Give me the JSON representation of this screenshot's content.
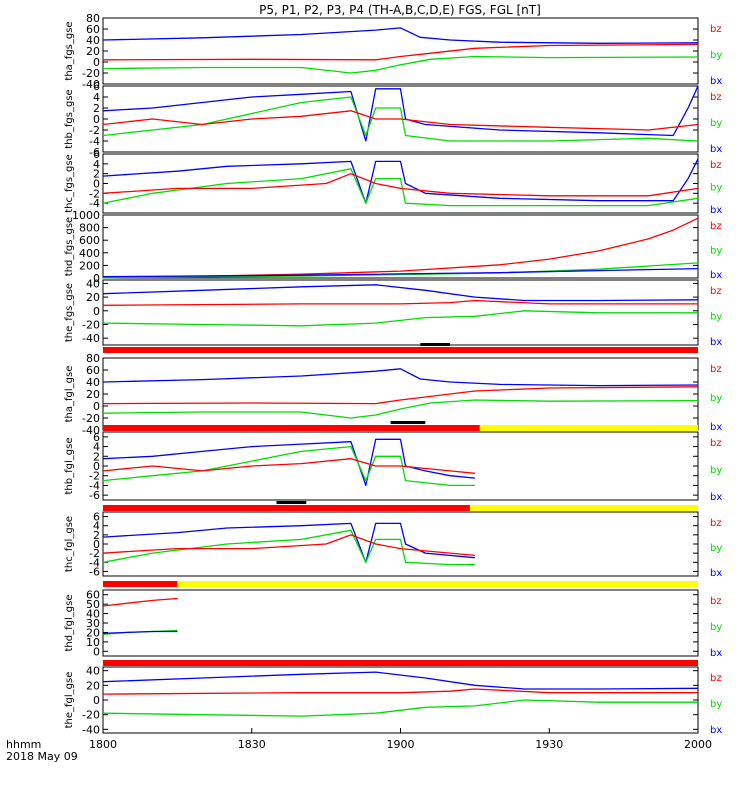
{
  "title": "P5, P1, P2, P3, P4 (TH-A,B,C,D,E) FGS, FGL [nT]",
  "x_axis": {
    "ticks": [
      "1800",
      "1830",
      "1900",
      "1930",
      "2000"
    ],
    "footer_line1": "hhmm",
    "footer_line2": "2018 May 09"
  },
  "colors": {
    "bx": "#0000ff",
    "by": "#00dd00",
    "bz": "#ff0000",
    "axis": "#000000"
  },
  "chart_data": [
    {
      "type": "line",
      "ylabel": "tha_fgs_gse",
      "ylim": [
        -40,
        80
      ],
      "ytick_values": [
        -40,
        -20,
        0,
        20,
        40,
        60,
        80
      ],
      "legend": [
        "bz",
        "by",
        "bx"
      ],
      "x": [
        0,
        120
      ],
      "x_units": "minutes after 1800",
      "series": [
        {
          "name": "bx",
          "x": [
            0,
            20,
            40,
            55,
            60,
            64,
            70,
            80,
            100,
            120
          ],
          "values": [
            40,
            44,
            50,
            58,
            62,
            45,
            40,
            36,
            34,
            35
          ]
        },
        {
          "name": "by",
          "x": [
            0,
            20,
            40,
            50,
            55,
            60,
            66,
            75,
            90,
            120
          ],
          "values": [
            -12,
            -10,
            -10,
            -20,
            -15,
            -5,
            5,
            10,
            8,
            9
          ]
        },
        {
          "name": "bz",
          "x": [
            0,
            30,
            55,
            60,
            65,
            75,
            90,
            120
          ],
          "values": [
            4,
            5,
            4,
            10,
            15,
            25,
            30,
            32
          ]
        }
      ]
    },
    {
      "type": "line",
      "ylabel": "thb_fgs_gse",
      "ylim": [
        -6,
        6
      ],
      "ytick_values": [
        -6,
        -4,
        -2,
        0,
        2,
        4,
        6
      ],
      "legend": [
        "bz",
        "by",
        "bx"
      ],
      "x": [
        0,
        120
      ],
      "series": [
        {
          "name": "bx",
          "x": [
            0,
            10,
            20,
            30,
            40,
            50,
            53,
            55,
            60,
            61,
            65,
            80,
            100,
            115,
            118,
            120
          ],
          "values": [
            1.5,
            2,
            3,
            4,
            4.5,
            5,
            -4,
            5.5,
            5.5,
            0,
            -1,
            -2,
            -2.5,
            -3,
            2,
            6
          ]
        },
        {
          "name": "by",
          "x": [
            0,
            10,
            20,
            30,
            40,
            50,
            53,
            55,
            60,
            61,
            70,
            90,
            110,
            120
          ],
          "values": [
            -3,
            -2,
            -1,
            1,
            3,
            4,
            -3,
            2,
            2,
            -3,
            -4,
            -4,
            -3.5,
            -4
          ]
        },
        {
          "name": "bz",
          "x": [
            0,
            10,
            20,
            30,
            40,
            50,
            55,
            60,
            70,
            90,
            110,
            120
          ],
          "values": [
            -1,
            0,
            -1,
            0,
            0.5,
            1.5,
            0,
            0,
            -1,
            -1.5,
            -2,
            -1
          ]
        }
      ]
    },
    {
      "type": "line",
      "ylabel": "thc_fgs_gse",
      "ylim": [
        -6,
        6
      ],
      "ytick_values": [
        -4,
        -2,
        0,
        2,
        4,
        6
      ],
      "legend": [
        "bz",
        "by",
        "bx"
      ],
      "x": [
        0,
        120
      ],
      "series": [
        {
          "name": "bx",
          "x": [
            0,
            15,
            25,
            40,
            50,
            53,
            55,
            60,
            61,
            65,
            80,
            100,
            115,
            118,
            120
          ],
          "values": [
            1.5,
            2.5,
            3.5,
            4,
            4.5,
            -4,
            4.5,
            4.5,
            0,
            -2,
            -3,
            -3.5,
            -3.5,
            1,
            5
          ]
        },
        {
          "name": "by",
          "x": [
            0,
            10,
            25,
            40,
            50,
            53,
            55,
            60,
            61,
            70,
            90,
            110,
            120
          ],
          "values": [
            -4,
            -2,
            0,
            1,
            3,
            -4,
            1,
            1,
            -4,
            -4.5,
            -4.5,
            -4.5,
            -3
          ]
        },
        {
          "name": "bz",
          "x": [
            0,
            15,
            30,
            45,
            50,
            55,
            60,
            70,
            90,
            110,
            120
          ],
          "values": [
            -2,
            -1,
            -1,
            0,
            2,
            0,
            -1,
            -2,
            -2.5,
            -2.5,
            -1
          ]
        }
      ]
    },
    {
      "type": "line",
      "ylabel": "thd_fgs_gse",
      "ylim": [
        0,
        1000
      ],
      "ytick_values": [
        0,
        200,
        400,
        600,
        800,
        1000
      ],
      "legend": [
        "bz",
        "by",
        "bx"
      ],
      "x": [
        0,
        120
      ],
      "series": [
        {
          "name": "bz",
          "x": [
            0,
            20,
            40,
            60,
            80,
            90,
            100,
            110,
            115,
            120
          ],
          "values": [
            10,
            30,
            60,
            110,
            210,
            300,
            430,
            620,
            760,
            950
          ]
        },
        {
          "name": "by",
          "x": [
            0,
            40,
            80,
            100,
            120
          ],
          "values": [
            5,
            30,
            80,
            140,
            240
          ]
        },
        {
          "name": "bx",
          "x": [
            0,
            40,
            80,
            120
          ],
          "values": [
            20,
            45,
            85,
            150
          ]
        }
      ]
    },
    {
      "type": "line",
      "ylabel": "the_fgs_gse",
      "ylim": [
        -50,
        45
      ],
      "ytick_values": [
        -40,
        -20,
        0,
        20,
        40
      ],
      "legend": [
        "bz",
        "by",
        "bx"
      ],
      "x": [
        0,
        120
      ],
      "series": [
        {
          "name": "bx",
          "x": [
            0,
            20,
            40,
            55,
            65,
            75,
            85,
            100,
            120
          ],
          "values": [
            25,
            30,
            35,
            38,
            30,
            20,
            15,
            15,
            16
          ]
        },
        {
          "name": "by",
          "x": [
            0,
            20,
            40,
            55,
            65,
            75,
            85,
            100,
            120
          ],
          "values": [
            -18,
            -20,
            -22,
            -18,
            -10,
            -8,
            0,
            -3,
            -3
          ]
        },
        {
          "name": "bz",
          "x": [
            0,
            40,
            60,
            70,
            75,
            90,
            120
          ],
          "values": [
            8,
            10,
            10,
            12,
            15,
            10,
            10
          ]
        }
      ]
    },
    {
      "type": "line",
      "ylabel": "tha_fgl_gse",
      "ylim": [
        -40,
        80
      ],
      "ytick_values": [
        -40,
        -20,
        0,
        20,
        40,
        60,
        80
      ],
      "legend": [
        "bz",
        "by",
        "bx"
      ],
      "x": [
        0,
        120
      ],
      "series": [
        {
          "name": "bx",
          "x": [
            0,
            20,
            40,
            55,
            60,
            64,
            70,
            80,
            100,
            120
          ],
          "values": [
            40,
            44,
            50,
            58,
            62,
            45,
            40,
            36,
            34,
            35
          ]
        },
        {
          "name": "by",
          "x": [
            0,
            20,
            40,
            50,
            55,
            60,
            66,
            75,
            90,
            120
          ],
          "values": [
            -12,
            -10,
            -10,
            -20,
            -15,
            -5,
            5,
            10,
            8,
            9
          ]
        },
        {
          "name": "bz",
          "x": [
            0,
            30,
            55,
            60,
            65,
            75,
            90,
            120
          ],
          "values": [
            4,
            5,
            4,
            10,
            15,
            25,
            30,
            32
          ]
        }
      ]
    },
    {
      "type": "line",
      "ylabel": "thb_fgl_gse",
      "ylim": [
        -7,
        7
      ],
      "ytick_values": [
        -6,
        -4,
        -2,
        0,
        2,
        4,
        6
      ],
      "legend": [
        "bz",
        "by",
        "bx"
      ],
      "x": [
        0,
        120
      ],
      "series": [
        {
          "name": "bx",
          "x": [
            0,
            10,
            20,
            30,
            40,
            50,
            53,
            55,
            60,
            61,
            65,
            70,
            75
          ],
          "values": [
            1.5,
            2,
            3,
            4,
            4.5,
            5,
            -4,
            5.5,
            5.5,
            0,
            -1,
            -2,
            -2.5
          ]
        },
        {
          "name": "by",
          "x": [
            0,
            10,
            20,
            30,
            40,
            50,
            53,
            55,
            60,
            61,
            70,
            75
          ],
          "values": [
            -3,
            -2,
            -1,
            1,
            3,
            4,
            -3,
            2,
            2,
            -3,
            -4,
            -4
          ]
        },
        {
          "name": "bz",
          "x": [
            0,
            10,
            20,
            30,
            40,
            50,
            55,
            60,
            70,
            75
          ],
          "values": [
            -1,
            0,
            -1,
            0,
            0.5,
            1.5,
            0,
            0,
            -1,
            -1.5
          ]
        }
      ]
    },
    {
      "type": "line",
      "ylabel": "thc_fgl_gse",
      "ylim": [
        -7,
        7
      ],
      "ytick_values": [
        -6,
        -4,
        -2,
        0,
        2,
        4,
        6
      ],
      "legend": [
        "bz",
        "by",
        "bx"
      ],
      "x": [
        0,
        120
      ],
      "series": [
        {
          "name": "bx",
          "x": [
            0,
            15,
            25,
            40,
            50,
            53,
            55,
            60,
            61,
            65,
            75
          ],
          "values": [
            1.5,
            2.5,
            3.5,
            4,
            4.5,
            -4,
            4.5,
            4.5,
            0,
            -2,
            -3
          ]
        },
        {
          "name": "by",
          "x": [
            0,
            10,
            25,
            40,
            50,
            53,
            55,
            60,
            61,
            70,
            75
          ],
          "values": [
            -4,
            -2,
            0,
            1,
            3,
            -4,
            1,
            1,
            -4,
            -4.5,
            -4.5
          ]
        },
        {
          "name": "bz",
          "x": [
            0,
            15,
            30,
            45,
            50,
            55,
            60,
            70,
            75
          ],
          "values": [
            -2,
            -1,
            -1,
            0,
            2,
            0,
            -1,
            -2,
            -2.5
          ]
        }
      ]
    },
    {
      "type": "line",
      "ylabel": "thd_fgl_gse",
      "ylim": [
        -5,
        65
      ],
      "ytick_values": [
        0,
        10,
        20,
        30,
        40,
        50,
        60
      ],
      "legend": [
        "bz",
        "by",
        "bx"
      ],
      "x": [
        0,
        120
      ],
      "series": [
        {
          "name": "bz",
          "x": [
            0,
            5,
            10,
            15
          ],
          "values": [
            48,
            51,
            54,
            56
          ]
        },
        {
          "name": "by",
          "x": [
            0,
            5,
            10,
            15
          ],
          "values": [
            18,
            20,
            21,
            22
          ]
        },
        {
          "name": "bx",
          "x": [
            0,
            5,
            10,
            15
          ],
          "values": [
            19,
            20,
            21,
            21
          ]
        }
      ]
    },
    {
      "type": "line",
      "ylabel": "the_fgl_gse",
      "ylim": [
        -45,
        45
      ],
      "ytick_values": [
        -40,
        -20,
        0,
        20,
        40
      ],
      "legend": [
        "bz",
        "by",
        "bx"
      ],
      "x": [
        0,
        120
      ],
      "series": [
        {
          "name": "bx",
          "x": [
            0,
            20,
            40,
            55,
            65,
            75,
            85,
            100,
            120
          ],
          "values": [
            25,
            30,
            35,
            38,
            30,
            20,
            15,
            15,
            16
          ]
        },
        {
          "name": "by",
          "x": [
            0,
            20,
            40,
            55,
            65,
            75,
            85,
            100,
            120
          ],
          "values": [
            -18,
            -20,
            -22,
            -18,
            -10,
            -8,
            0,
            -3,
            -3
          ]
        },
        {
          "name": "bz",
          "x": [
            0,
            40,
            60,
            70,
            75,
            90,
            120
          ],
          "values": [
            8,
            10,
            10,
            12,
            15,
            10,
            10
          ]
        }
      ]
    }
  ],
  "mode_bars": [
    {
      "after_panel": 4,
      "segments": [
        {
          "x0": 0,
          "x1": 120,
          "color": "#ff0000"
        }
      ],
      "markers": [
        {
          "x0": 64,
          "x1": 70
        }
      ]
    },
    {
      "after_panel": 5,
      "segments": [
        {
          "x0": 0,
          "x1": 76,
          "color": "#ff0000"
        },
        {
          "x0": 76,
          "x1": 120,
          "color": "#ffff00"
        }
      ],
      "markers": [
        {
          "x0": 58,
          "x1": 65
        }
      ]
    },
    {
      "after_panel": 6,
      "segments": [
        {
          "x0": 0,
          "x1": 74,
          "color": "#ff0000"
        },
        {
          "x0": 74,
          "x1": 120,
          "color": "#ffff00"
        }
      ],
      "markers": [
        {
          "x0": 35,
          "x1": 41
        }
      ]
    },
    {
      "after_panel": 7,
      "segments": [
        {
          "x0": 0,
          "x1": 15,
          "color": "#ff0000"
        },
        {
          "x0": 15,
          "x1": 120,
          "color": "#ffff00"
        }
      ],
      "markers": []
    },
    {
      "after_panel": 8,
      "segments": [
        {
          "x0": 0,
          "x1": 120,
          "color": "#ff0000"
        }
      ],
      "markers": []
    }
  ]
}
